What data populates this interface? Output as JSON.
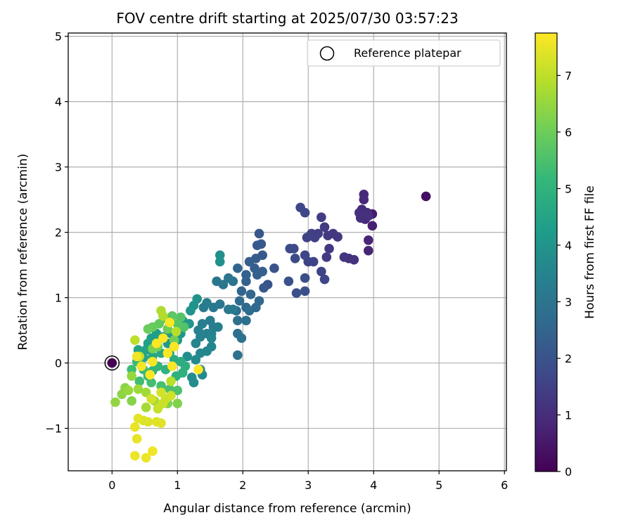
{
  "chart_data": {
    "type": "scatter",
    "title": "FOV centre drift starting at 2025/07/30 03:57:23",
    "xlabel": "Angular distance from reference (arcmin)",
    "ylabel": "Rotation from reference (arcmin)",
    "xlim": [
      -0.67,
      6.03
    ],
    "ylim": [
      -1.65,
      5.05
    ],
    "xticks": [
      0,
      1,
      2,
      3,
      4,
      5,
      6
    ],
    "yticks": [
      -1,
      0,
      1,
      2,
      3,
      4,
      5
    ],
    "xtick_labels": [
      "0",
      "1",
      "2",
      "3",
      "4",
      "5",
      "6"
    ],
    "ytick_labels": [
      "−1",
      "0",
      "1",
      "2",
      "3",
      "4",
      "5"
    ],
    "grid": true,
    "legend": {
      "placement": "upper right",
      "entries": [
        "Reference platepar"
      ]
    },
    "reference_point": {
      "x": 0,
      "y": 0
    },
    "colorbar": {
      "label": "Hours from first FF file",
      "colormap": "viridis",
      "range": [
        0,
        7.75
      ],
      "ticks": [
        0,
        1,
        2,
        3,
        4,
        5,
        6,
        7
      ],
      "tick_labels": [
        "0",
        "1",
        "2",
        "3",
        "4",
        "5",
        "6",
        "7"
      ]
    },
    "points": [
      [
        4.8,
        2.55,
        0.3
      ],
      [
        3.98,
        2.28,
        0.6
      ],
      [
        3.98,
        2.1,
        0.7
      ],
      [
        3.92,
        1.88,
        0.8
      ],
      [
        3.92,
        1.72,
        0.8
      ],
      [
        3.87,
        2.2,
        0.9
      ],
      [
        3.85,
        2.58,
        0.9
      ],
      [
        3.85,
        2.5,
        0.95
      ],
      [
        3.82,
        2.35,
        1.0
      ],
      [
        3.9,
        2.3,
        1.0
      ],
      [
        3.8,
        2.22,
        1.05
      ],
      [
        3.78,
        2.3,
        1.05
      ],
      [
        3.92,
        2.25,
        1.1
      ],
      [
        3.85,
        2.28,
        1.1
      ],
      [
        3.7,
        1.58,
        1.15
      ],
      [
        3.62,
        1.6,
        1.15
      ],
      [
        3.55,
        1.62,
        1.2
      ],
      [
        3.45,
        1.93,
        1.25
      ],
      [
        3.38,
        1.98,
        1.25
      ],
      [
        3.3,
        1.95,
        1.3
      ],
      [
        3.32,
        1.75,
        1.3
      ],
      [
        3.28,
        1.62,
        1.35
      ],
      [
        3.25,
        2.08,
        1.35
      ],
      [
        3.2,
        2.23,
        1.4
      ],
      [
        3.15,
        1.98,
        1.45
      ],
      [
        3.1,
        1.92,
        1.5
      ],
      [
        3.05,
        1.98,
        1.5
      ],
      [
        2.98,
        1.92,
        1.55
      ],
      [
        3.0,
        1.55,
        1.55
      ],
      [
        3.08,
        1.55,
        1.6
      ],
      [
        3.2,
        1.4,
        1.6
      ],
      [
        3.25,
        1.28,
        1.65
      ],
      [
        2.95,
        1.65,
        1.65
      ],
      [
        2.88,
        2.38,
        1.7
      ],
      [
        2.95,
        2.3,
        1.7
      ],
      [
        2.78,
        1.75,
        1.75
      ],
      [
        2.72,
        1.75,
        1.8
      ],
      [
        2.8,
        1.6,
        1.8
      ],
      [
        2.95,
        1.3,
        1.85
      ],
      [
        2.95,
        1.1,
        1.9
      ],
      [
        2.82,
        1.07,
        1.9
      ],
      [
        2.7,
        1.25,
        1.95
      ],
      [
        2.48,
        1.45,
        2.0
      ],
      [
        2.38,
        1.2,
        2.0
      ],
      [
        2.32,
        1.15,
        2.1
      ],
      [
        2.25,
        1.98,
        2.1
      ],
      [
        2.28,
        1.82,
        2.15
      ],
      [
        2.22,
        1.8,
        2.2
      ],
      [
        2.3,
        1.65,
        2.2
      ],
      [
        2.2,
        1.6,
        2.25
      ],
      [
        2.1,
        1.55,
        2.3
      ],
      [
        2.18,
        1.45,
        2.3
      ],
      [
        2.3,
        1.4,
        2.35
      ],
      [
        2.22,
        1.35,
        2.4
      ],
      [
        2.05,
        1.35,
        2.4
      ],
      [
        2.05,
        1.25,
        2.45
      ],
      [
        1.92,
        1.45,
        2.5
      ],
      [
        1.98,
        1.1,
        2.5
      ],
      [
        2.12,
        1.05,
        2.55
      ],
      [
        2.25,
        0.95,
        2.6
      ],
      [
        2.2,
        0.85,
        2.6
      ],
      [
        2.05,
        0.85,
        2.65
      ],
      [
        1.95,
        0.95,
        2.7
      ],
      [
        1.9,
        0.8,
        2.7
      ],
      [
        2.1,
        0.8,
        2.75
      ],
      [
        1.92,
        0.65,
        2.8
      ],
      [
        2.05,
        0.65,
        2.8
      ],
      [
        1.92,
        0.45,
        2.85
      ],
      [
        1.98,
        0.38,
        2.9
      ],
      [
        1.92,
        0.12,
        2.9
      ],
      [
        1.85,
        1.25,
        2.95
      ],
      [
        1.78,
        1.3,
        3.0
      ],
      [
        1.7,
        1.2,
        3.0
      ],
      [
        1.6,
        1.25,
        3.05
      ],
      [
        1.65,
        0.9,
        3.05
      ],
      [
        1.55,
        0.85,
        3.1
      ],
      [
        1.78,
        0.82,
        3.15
      ],
      [
        1.85,
        0.82,
        3.15
      ],
      [
        1.45,
        0.92,
        3.2
      ],
      [
        1.4,
        0.85,
        3.2
      ],
      [
        1.5,
        0.65,
        3.25
      ],
      [
        1.38,
        0.6,
        3.3
      ],
      [
        1.55,
        0.55,
        3.3
      ],
      [
        1.62,
        0.55,
        3.35
      ],
      [
        1.45,
        0.45,
        3.4
      ],
      [
        1.32,
        0.5,
        3.4
      ],
      [
        1.35,
        0.4,
        3.45
      ],
      [
        1.52,
        0.45,
        3.45
      ],
      [
        1.28,
        0.3,
        3.5
      ],
      [
        1.52,
        0.38,
        3.55
      ],
      [
        1.52,
        0.25,
        3.55
      ],
      [
        1.45,
        0.18,
        3.6
      ],
      [
        1.35,
        0.15,
        3.6
      ],
      [
        1.28,
        0.05,
        3.65
      ],
      [
        1.35,
        -0.1,
        3.65
      ],
      [
        1.38,
        -0.18,
        3.7
      ],
      [
        1.22,
        -0.22,
        3.75
      ],
      [
        1.25,
        -0.3,
        3.75
      ],
      [
        1.15,
        0.1,
        3.8
      ],
      [
        1.65,
        1.65,
        3.85
      ],
      [
        1.65,
        1.55,
        3.9
      ],
      [
        1.3,
        0.98,
        3.95
      ],
      [
        1.25,
        0.88,
        4.0
      ],
      [
        1.2,
        0.8,
        4.0
      ],
      [
        1.18,
        0.6,
        4.05
      ],
      [
        1.08,
        0.65,
        4.1
      ],
      [
        1.05,
        0.45,
        4.1
      ],
      [
        1.0,
        0.35,
        4.15
      ],
      [
        0.9,
        0.45,
        4.2
      ],
      [
        0.85,
        0.3,
        4.2
      ],
      [
        0.78,
        0.4,
        4.25
      ],
      [
        0.7,
        0.35,
        4.3
      ],
      [
        0.68,
        0.45,
        4.3
      ],
      [
        0.6,
        0.38,
        4.35
      ],
      [
        0.55,
        0.3,
        4.4
      ],
      [
        0.52,
        0.2,
        4.45
      ],
      [
        0.4,
        0.2,
        4.5
      ],
      [
        0.48,
        0.08,
        4.55
      ],
      [
        0.62,
        0.1,
        4.6
      ],
      [
        0.75,
        0.15,
        4.65
      ],
      [
        0.88,
        0.15,
        4.7
      ],
      [
        0.95,
        0.05,
        4.75
      ],
      [
        1.05,
        0.02,
        4.8
      ],
      [
        1.12,
        -0.05,
        4.85
      ],
      [
        1.08,
        -0.15,
        4.9
      ],
      [
        0.98,
        -0.2,
        4.95
      ],
      [
        0.82,
        -0.1,
        5.0
      ],
      [
        0.7,
        -0.05,
        5.05
      ],
      [
        0.62,
        -0.12,
        5.1
      ],
      [
        0.55,
        -0.2,
        5.15
      ],
      [
        0.48,
        -0.1,
        5.2
      ],
      [
        0.38,
        0.02,
        5.25
      ],
      [
        0.3,
        -0.1,
        5.3
      ],
      [
        0.42,
        -0.28,
        5.35
      ],
      [
        0.6,
        -0.3,
        5.4
      ],
      [
        0.75,
        -0.35,
        5.45
      ],
      [
        0.88,
        -0.4,
        5.5
      ],
      [
        1.0,
        -0.42,
        5.55
      ],
      [
        1.1,
        0.55,
        5.6
      ],
      [
        1.05,
        0.7,
        5.65
      ],
      [
        1.0,
        0.6,
        5.7
      ],
      [
        0.92,
        0.72,
        5.75
      ],
      [
        0.8,
        0.68,
        5.8
      ],
      [
        0.72,
        0.6,
        5.85
      ],
      [
        0.62,
        0.55,
        5.9
      ],
      [
        0.55,
        0.52,
        5.95
      ],
      [
        0.85,
        0.52,
        6.0
      ],
      [
        0.95,
        0.35,
        6.05
      ],
      [
        0.7,
        0.25,
        6.1
      ],
      [
        0.62,
        0.22,
        6.15
      ],
      [
        0.85,
        -0.62,
        6.2
      ],
      [
        1.0,
        -0.62,
        6.25
      ],
      [
        0.3,
        -0.58,
        6.3
      ],
      [
        0.2,
        -0.38,
        6.35
      ],
      [
        0.15,
        -0.48,
        6.4
      ],
      [
        0.05,
        -0.6,
        6.45
      ],
      [
        0.3,
        -0.2,
        6.5
      ],
      [
        0.25,
        -0.42,
        6.55
      ],
      [
        0.4,
        -0.4,
        6.6
      ],
      [
        0.52,
        -0.45,
        6.65
      ],
      [
        0.52,
        -0.68,
        6.7
      ],
      [
        0.65,
        -0.58,
        6.75
      ],
      [
        0.75,
        0.8,
        6.8
      ],
      [
        0.78,
        0.72,
        6.85
      ],
      [
        0.98,
        0.48,
        6.9
      ],
      [
        0.9,
        -0.28,
        6.95
      ],
      [
        0.35,
        0.35,
        7.0
      ],
      [
        0.42,
        0.1,
        7.05
      ],
      [
        0.7,
        -0.7,
        7.1
      ],
      [
        0.78,
        -0.62,
        7.15
      ],
      [
        0.82,
        -0.55,
        7.15
      ],
      [
        0.9,
        -0.5,
        7.2
      ],
      [
        0.75,
        -0.45,
        7.25
      ],
      [
        0.6,
        -0.55,
        7.25
      ],
      [
        0.48,
        -0.88,
        7.3
      ],
      [
        0.55,
        -0.9,
        7.35
      ],
      [
        0.68,
        -0.9,
        7.4
      ],
      [
        0.75,
        -0.92,
        7.4
      ],
      [
        0.4,
        -0.85,
        7.45
      ],
      [
        0.35,
        -0.98,
        7.5
      ],
      [
        0.38,
        -1.16,
        7.5
      ],
      [
        0.35,
        -1.42,
        7.55
      ],
      [
        0.52,
        -1.45,
        7.55
      ],
      [
        0.62,
        -1.35,
        7.6
      ],
      [
        0.38,
        0.1,
        7.6
      ],
      [
        0.45,
        -0.05,
        7.65
      ],
      [
        0.62,
        0.02,
        7.65
      ],
      [
        0.85,
        0.15,
        7.7
      ],
      [
        0.95,
        0.25,
        7.7
      ],
      [
        0.78,
        0.38,
        7.72
      ],
      [
        0.68,
        0.3,
        7.72
      ],
      [
        0.88,
        0.62,
        7.74
      ],
      [
        0.92,
        -0.05,
        7.74
      ],
      [
        1.32,
        -0.1,
        7.75
      ],
      [
        0.58,
        -0.18,
        7.75
      ]
    ]
  }
}
